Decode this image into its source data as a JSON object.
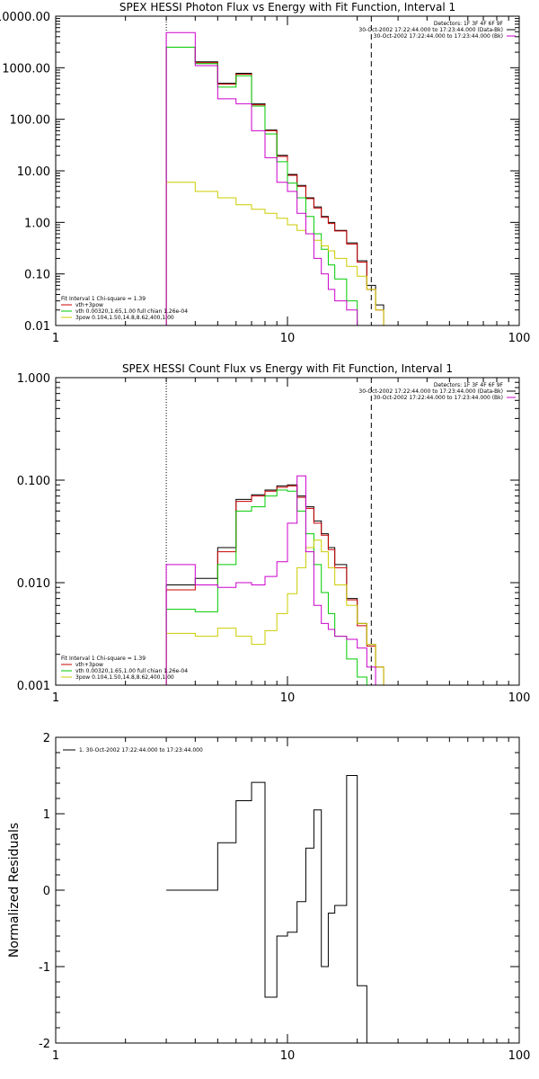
{
  "colors": {
    "total": "#000000",
    "fit": "#cc0000",
    "vth": "#00cc00",
    "bpow": "#cccc00",
    "bk": "#cc00cc",
    "axis": "#000000"
  },
  "chart_data": [
    {
      "type": "line",
      "title": "SPEX HESSI Photon Flux vs Energy with Fit Function, Interval 1",
      "xscale": "log",
      "yscale": "log",
      "xlim": [
        1,
        100
      ],
      "ylim": [
        0.01,
        10000
      ],
      "xticks": [
        {
          "v": 1,
          "label": "1"
        },
        {
          "v": 10,
          "label": "10"
        },
        {
          "v": 100,
          "label": "100"
        }
      ],
      "yticks": [
        {
          "v": 10000,
          "label": "10000.00"
        },
        {
          "v": 1000,
          "label": "1000.00"
        },
        {
          "v": 100,
          "label": "100.00"
        },
        {
          "v": 10,
          "label": "10.00"
        },
        {
          "v": 1,
          "label": "1.00"
        },
        {
          "v": 0.1,
          "label": "0.10"
        },
        {
          "v": 0.01,
          "label": "0.01"
        }
      ],
      "vlines": [
        {
          "x": 3,
          "style": "dotted"
        },
        {
          "x": 23,
          "style": "dashed"
        }
      ],
      "legend_right": [
        "Detectors: 1F 3F 4F 6F 9F",
        "30-Oct-2002 17:22:44.000 to 17:23:44.000 (Data-Bk)",
        "30-Oct-2002 17:22:44.000 to 17:23:44.000 (Bk)"
      ],
      "legend_left": [
        "Fit Interval 1   Chi-square = 1.39",
        "vth+3pow",
        "vth 0.00320,1.65,1.00  full chian 1.26e-04",
        "3pow 0.104,1.50,14.8,8.62,400,1.00"
      ],
      "edges": [
        3,
        4,
        5,
        6,
        7,
        8,
        9,
        10,
        11,
        12,
        13,
        14,
        15,
        16,
        18,
        20,
        22,
        24,
        26,
        28
      ],
      "series": [
        {
          "key": "total",
          "values": [
            2500,
            1300,
            500,
            780,
            200,
            62,
            20,
            8.5,
            5.2,
            3.0,
            2.0,
            1.3,
            1.0,
            0.7,
            0.4,
            0.18,
            0.06,
            0.025,
            0.01
          ]
        },
        {
          "key": "fit",
          "values": [
            2500,
            1250,
            480,
            750,
            190,
            60,
            19,
            8.2,
            5.0,
            2.9,
            1.9,
            1.25,
            0.95,
            0.68,
            0.38,
            0.17,
            0.05,
            0.02,
            0.01
          ]
        },
        {
          "key": "vth",
          "values": [
            2500,
            1200,
            420,
            700,
            180,
            52,
            15,
            5.8,
            3.0,
            1.3,
            0.6,
            0.3,
            0.15,
            0.08,
            0.03,
            0.01,
            0.01,
            0.01,
            0.01
          ]
        },
        {
          "key": "bpow",
          "values": [
            6,
            4,
            3,
            2.2,
            1.8,
            1.5,
            1.2,
            0.9,
            0.7,
            0.6,
            0.45,
            0.35,
            0.28,
            0.2,
            0.14,
            0.09,
            0.05,
            0.02,
            0.01
          ]
        },
        {
          "key": "bk",
          "values": [
            4800,
            1100,
            250,
            200,
            60,
            18,
            6,
            4,
            1.5,
            0.6,
            0.2,
            0.1,
            0.05,
            0.03,
            0.02,
            0.01,
            0.01,
            0.01,
            0.01
          ]
        }
      ]
    },
    {
      "type": "line",
      "title": "SPEX HESSI Count Flux vs Energy with Fit Function, Interval 1",
      "xscale": "log",
      "yscale": "log",
      "xlim": [
        1,
        100
      ],
      "ylim": [
        0.001,
        1
      ],
      "xticks": [
        {
          "v": 1,
          "label": "1"
        },
        {
          "v": 10,
          "label": "10"
        },
        {
          "v": 100,
          "label": "100"
        }
      ],
      "yticks": [
        {
          "v": 1,
          "label": "1.000"
        },
        {
          "v": 0.1,
          "label": "0.100"
        },
        {
          "v": 0.01,
          "label": "0.010"
        },
        {
          "v": 0.001,
          "label": "0.001"
        }
      ],
      "vlines": [
        {
          "x": 3,
          "style": "dotted"
        },
        {
          "x": 23,
          "style": "dashed"
        }
      ],
      "legend_right": [
        "Detectors: 1F 3F 4F 6F 9F",
        "30-Oct-2002 17:22:44.000 to 17:23:44.000 (Data-Bk)",
        "30-Oct-2002 17:22:44.000 to 17:23:44.000 (Bk)"
      ],
      "legend_left": [
        "Fit Interval 1   Chi-square = 1.39",
        "vth+3pow",
        "vth 0.00320,1.65,1.00  full chian 1.26e-04",
        "3pow 0.104,1.50,14.8,8.62,400,1.00"
      ],
      "edges": [
        3,
        4,
        5,
        6,
        7,
        8,
        9,
        10,
        11,
        12,
        13,
        14,
        15,
        16,
        18,
        20,
        22,
        24,
        26,
        28
      ],
      "series": [
        {
          "key": "total",
          "values": [
            0.0095,
            0.011,
            0.022,
            0.065,
            0.072,
            0.08,
            0.088,
            0.09,
            0.07,
            0.055,
            0.04,
            0.03,
            0.022,
            0.015,
            0.007,
            0.004,
            0.0025,
            0.0015,
            0.001
          ]
        },
        {
          "key": "fit",
          "values": [
            0.0085,
            0.0095,
            0.02,
            0.062,
            0.07,
            0.078,
            0.085,
            0.088,
            0.068,
            0.053,
            0.038,
            0.029,
            0.021,
            0.014,
            0.0068,
            0.0038,
            0.0024,
            0.0015,
            0.001
          ]
        },
        {
          "key": "vth",
          "values": [
            0.0055,
            0.0052,
            0.015,
            0.05,
            0.055,
            0.07,
            0.08,
            0.078,
            0.05,
            0.03,
            0.015,
            0.008,
            0.005,
            0.003,
            0.0018,
            0.0012,
            0.001,
            0.001,
            0.001
          ]
        },
        {
          "key": "bpow",
          "values": [
            0.0032,
            0.003,
            0.0036,
            0.003,
            0.0025,
            0.0034,
            0.005,
            0.0078,
            0.014,
            0.022,
            0.026,
            0.02,
            0.014,
            0.0095,
            0.006,
            0.004,
            0.0025,
            0.0015,
            0.001
          ]
        },
        {
          "key": "bk",
          "values": [
            0.015,
            0.0095,
            0.009,
            0.01,
            0.0095,
            0.0115,
            0.016,
            0.038,
            0.11,
            0.02,
            0.006,
            0.004,
            0.0035,
            0.003,
            0.0028,
            0.0023,
            0.0015,
            0.001,
            0.001
          ]
        }
      ]
    },
    {
      "type": "line",
      "title": "",
      "ylabel": "Normalized Residuals",
      "xscale": "log",
      "yscale": "linear",
      "xlim": [
        1,
        100
      ],
      "ylim": [
        -2,
        2
      ],
      "xticks": [
        {
          "v": 1,
          "label": "1"
        },
        {
          "v": 10,
          "label": "10"
        },
        {
          "v": 100,
          "label": "100"
        }
      ],
      "yticks": [
        {
          "v": 2,
          "label": "2"
        },
        {
          "v": 1,
          "label": "1"
        },
        {
          "v": 0,
          "label": "0"
        },
        {
          "v": -1,
          "label": "-1"
        },
        {
          "v": -2,
          "label": "-2"
        }
      ],
      "legend": "1. 30-Oct-2002 17:22:44.000 to 17:23:44.000",
      "edges": [
        3,
        4,
        5,
        6,
        7,
        8,
        9,
        10,
        11,
        12,
        13,
        14,
        15,
        16,
        18,
        20,
        22,
        24
      ],
      "series": [
        {
          "key": "total",
          "values": [
            0.0,
            0.0,
            0.62,
            1.17,
            1.41,
            -1.4,
            -0.6,
            -0.55,
            -0.15,
            0.55,
            1.05,
            -1.0,
            -0.3,
            -0.2,
            1.5,
            -1.25,
            -2.0
          ]
        }
      ]
    }
  ]
}
